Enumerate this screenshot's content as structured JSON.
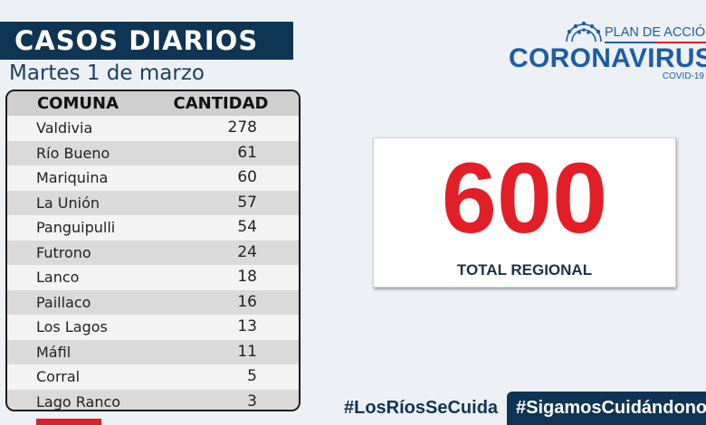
{
  "header": {
    "title": "CASOS DIARIOS",
    "date": "Martes 1 de marzo"
  },
  "table": {
    "headers": [
      "COMUNA",
      "CANTIDAD"
    ],
    "rows": [
      {
        "comuna": "Valdivia",
        "cantidad": "278"
      },
      {
        "comuna": "Río Bueno",
        "cantidad": "61"
      },
      {
        "comuna": "Mariquina",
        "cantidad": "60"
      },
      {
        "comuna": "La Unión",
        "cantidad": "57"
      },
      {
        "comuna": "Panguipulli",
        "cantidad": "54"
      },
      {
        "comuna": "Futrono",
        "cantidad": "24"
      },
      {
        "comuna": "Lanco",
        "cantidad": "18"
      },
      {
        "comuna": "Paillaco",
        "cantidad": "16"
      },
      {
        "comuna": "Los Lagos",
        "cantidad": "13"
      },
      {
        "comuna": "Máfil",
        "cantidad": "11"
      },
      {
        "comuna": "Corral",
        "cantidad": "5"
      },
      {
        "comuna": "Lago Ranco",
        "cantidad": "3"
      }
    ]
  },
  "total": {
    "value": "600",
    "label": "TOTAL REGIONAL"
  },
  "logo": {
    "top_text": "PLAN DE ACCIÓN",
    "main_text": "CORONAVIRUS",
    "sub_text": "COVID-19",
    "icon": "virus-icon"
  },
  "hashtags": [
    "#LosRíosSeCuida",
    "#SigamosCuidándonos"
  ],
  "colors": {
    "navy": "#0f3554",
    "brand_blue": "#1b5ea6",
    "accent_red": "#e21f26"
  }
}
